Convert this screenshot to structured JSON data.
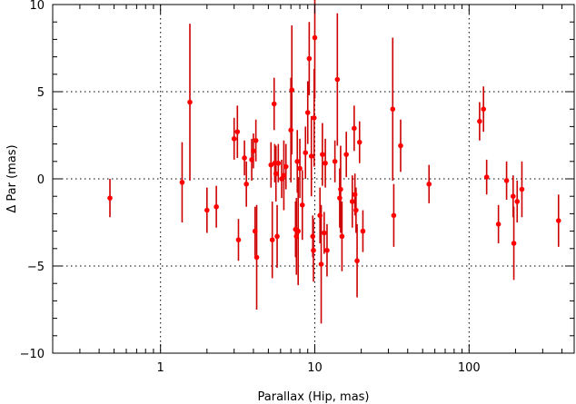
{
  "chart_data": {
    "type": "scatter",
    "title": "",
    "xlabel": "Parallax (Hip, mas)",
    "ylabel": "Δ Par (mas)",
    "xscale": "log",
    "xlim": [
      0.2,
      480
    ],
    "ylim": [
      -10,
      10
    ],
    "x_ticks": [
      1,
      10,
      100
    ],
    "x_tick_labels": [
      "1",
      "10",
      "100"
    ],
    "y_ticks": [
      -10,
      -5,
      0,
      5,
      10
    ],
    "y_tick_labels": [
      "−10",
      "−5",
      "0",
      "5",
      "10"
    ],
    "grid": "dotted at major ticks",
    "legend": "none",
    "marker_color": "#ff0000",
    "errorbar_color": "#cc0000",
    "points": [
      {
        "x": 0.47,
        "y": -1.1,
        "err": 1.1
      },
      {
        "x": 1.38,
        "y": -0.2,
        "err": 2.3
      },
      {
        "x": 1.55,
        "y": 4.4,
        "err": 4.5
      },
      {
        "x": 2.0,
        "y": -1.8,
        "err": 1.3
      },
      {
        "x": 2.3,
        "y": -1.6,
        "err": 1.2
      },
      {
        "x": 3.0,
        "y": 2.3,
        "err": 1.2
      },
      {
        "x": 3.15,
        "y": 2.7,
        "err": 1.5
      },
      {
        "x": 3.2,
        "y": -3.5,
        "err": 1.2
      },
      {
        "x": 3.5,
        "y": 1.2,
        "err": 1.0
      },
      {
        "x": 3.6,
        "y": -0.3,
        "err": 1.3
      },
      {
        "x": 3.9,
        "y": 1.1,
        "err": 1.2
      },
      {
        "x": 4.0,
        "y": 1.6,
        "err": 1.0
      },
      {
        "x": 4.1,
        "y": -3.0,
        "err": 1.4
      },
      {
        "x": 4.15,
        "y": 2.2,
        "err": 1.2
      },
      {
        "x": 4.2,
        "y": -4.5,
        "err": 3.0
      },
      {
        "x": 5.2,
        "y": 0.8,
        "err": 1.3
      },
      {
        "x": 5.3,
        "y": -3.5,
        "err": 2.2
      },
      {
        "x": 5.45,
        "y": 4.3,
        "err": 1.5
      },
      {
        "x": 5.5,
        "y": 0.9,
        "err": 1.1
      },
      {
        "x": 5.6,
        "y": 0.3,
        "err": 1.6
      },
      {
        "x": 5.7,
        "y": -3.3,
        "err": 1.8
      },
      {
        "x": 5.8,
        "y": 0.9,
        "err": 1.1
      },
      {
        "x": 6.1,
        "y": 0.0,
        "err": 1.1
      },
      {
        "x": 6.3,
        "y": 0.2,
        "err": 2.0
      },
      {
        "x": 6.5,
        "y": 0.7,
        "err": 1.3
      },
      {
        "x": 7.0,
        "y": 2.8,
        "err": 3.0
      },
      {
        "x": 7.1,
        "y": 5.1,
        "err": 3.7
      },
      {
        "x": 7.5,
        "y": -2.9,
        "err": 1.6
      },
      {
        "x": 7.6,
        "y": -3.3,
        "err": 2.2
      },
      {
        "x": 7.7,
        "y": 1.0,
        "err": 1.8
      },
      {
        "x": 7.8,
        "y": -3.0,
        "err": 3.1
      },
      {
        "x": 8.0,
        "y": 0.6,
        "err": 1.7
      },
      {
        "x": 8.3,
        "y": -1.5,
        "err": 2.0
      },
      {
        "x": 8.7,
        "y": 1.5,
        "err": 1.5
      },
      {
        "x": 9.0,
        "y": 3.8,
        "err": 1.8
      },
      {
        "x": 9.2,
        "y": 6.9,
        "err": 2.1
      },
      {
        "x": 9.5,
        "y": 1.3,
        "err": 2.3
      },
      {
        "x": 9.7,
        "y": -3.3,
        "err": 1.2
      },
      {
        "x": 9.8,
        "y": -4.1,
        "err": 1.8
      },
      {
        "x": 9.9,
        "y": 3.5,
        "err": 2.8
      },
      {
        "x": 10.0,
        "y": 8.1,
        "err": 3.5
      },
      {
        "x": 10.8,
        "y": -2.1,
        "err": 1.6
      },
      {
        "x": 11.0,
        "y": -4.9,
        "err": 3.4
      },
      {
        "x": 11.2,
        "y": 1.4,
        "err": 1.8
      },
      {
        "x": 11.5,
        "y": -3.1,
        "err": 1.2
      },
      {
        "x": 11.7,
        "y": 0.9,
        "err": 1.4
      },
      {
        "x": 12.0,
        "y": -4.1,
        "err": 1.5
      },
      {
        "x": 13.5,
        "y": 1.0,
        "err": 1.2
      },
      {
        "x": 14.0,
        "y": 5.7,
        "err": 3.8
      },
      {
        "x": 14.5,
        "y": -1.1,
        "err": 1.7
      },
      {
        "x": 14.7,
        "y": -0.6,
        "err": 2.5
      },
      {
        "x": 15.0,
        "y": -3.3,
        "err": 2.0
      },
      {
        "x": 16.0,
        "y": 1.4,
        "err": 1.3
      },
      {
        "x": 17.5,
        "y": -1.3,
        "err": 1.5
      },
      {
        "x": 18.0,
        "y": 2.9,
        "err": 1.3
      },
      {
        "x": 18.2,
        "y": -0.9,
        "err": 1.2
      },
      {
        "x": 18.5,
        "y": -1.8,
        "err": 1.3
      },
      {
        "x": 18.8,
        "y": -4.7,
        "err": 2.1
      },
      {
        "x": 19.5,
        "y": 2.1,
        "err": 1.2
      },
      {
        "x": 20.5,
        "y": -3.0,
        "err": 1.2
      },
      {
        "x": 32.0,
        "y": 4.0,
        "err": 4.1
      },
      {
        "x": 32.5,
        "y": -2.1,
        "err": 1.8
      },
      {
        "x": 36.0,
        "y": 1.9,
        "err": 1.5
      },
      {
        "x": 55.0,
        "y": -0.3,
        "err": 1.1
      },
      {
        "x": 117.0,
        "y": 3.3,
        "err": 1.1
      },
      {
        "x": 124.0,
        "y": 4.0,
        "err": 1.3
      },
      {
        "x": 130.0,
        "y": 0.1,
        "err": 1.0
      },
      {
        "x": 155.0,
        "y": -2.6,
        "err": 1.1
      },
      {
        "x": 175.0,
        "y": -0.1,
        "err": 1.1
      },
      {
        "x": 193.0,
        "y": -1.0,
        "err": 1.2
      },
      {
        "x": 195.0,
        "y": -3.7,
        "err": 2.1
      },
      {
        "x": 205.0,
        "y": -1.3,
        "err": 1.2
      },
      {
        "x": 220.0,
        "y": -0.6,
        "err": 1.6
      },
      {
        "x": 380.0,
        "y": -2.4,
        "err": 1.5
      }
    ]
  }
}
